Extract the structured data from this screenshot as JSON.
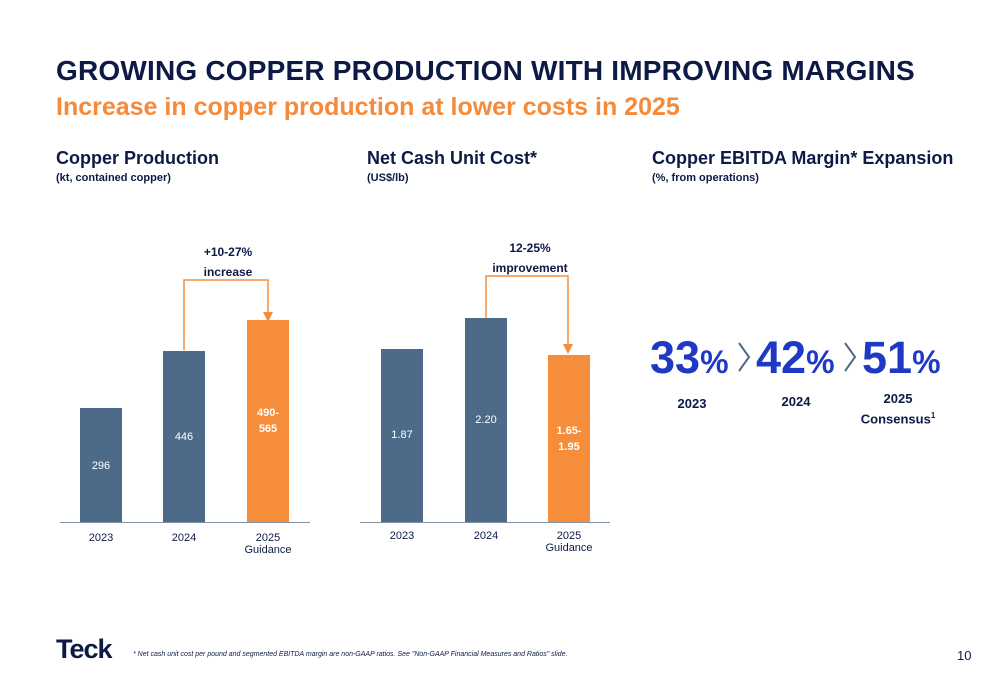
{
  "title": "GROWING COPPER PRODUCTION WITH IMPROVING MARGINS",
  "subtitle": "Increase in copper production at lower costs in 2025",
  "production": {
    "title": "Copper Production",
    "subtitle": "(kt, contained copper)",
    "callout_line1": "+10-27%",
    "callout_line2": "increase",
    "chart_data": {
      "type": "bar",
      "categories": [
        "2023",
        "2024",
        "2025 Guidance"
      ],
      "values": [
        296,
        446,
        [
          490,
          565
        ]
      ],
      "labels": [
        "296",
        "446",
        "490-\n565"
      ]
    },
    "bars": [
      {
        "label": "296",
        "x_label": "2023",
        "color": "#4e6a89"
      },
      {
        "label": "446",
        "x_label": "2024",
        "color": "#4e6a89"
      },
      {
        "label_line1": "490-",
        "label_line2": "565",
        "x_label_line1": "2025",
        "x_label_line2": "Guidance",
        "color": "#f68d3b"
      }
    ]
  },
  "cost": {
    "title": "Net Cash Unit Cost*",
    "subtitle": "(US$/lb)",
    "callout_line1": "12-25%",
    "callout_line2": "improvement",
    "chart_data": {
      "type": "bar",
      "categories": [
        "2023",
        "2024",
        "2025 Guidance"
      ],
      "values": [
        1.87,
        2.2,
        [
          1.65,
          1.95
        ]
      ],
      "labels": [
        "1.87",
        "2.20",
        "1.65-\n1.95"
      ]
    },
    "bars": [
      {
        "label": "1.87",
        "x_label": "2023",
        "color": "#4e6a89"
      },
      {
        "label": "2.20",
        "x_label": "2024",
        "color": "#4e6a89"
      },
      {
        "label_line1": "1.65-",
        "label_line2": "1.95",
        "x_label_line1": "2025",
        "x_label_line2": "Guidance",
        "color": "#f68d3b"
      }
    ]
  },
  "margin": {
    "title": "Copper EBITDA Margin* Expansion",
    "subtitle": "(%, from operations)",
    "items": [
      {
        "value": "33",
        "unit": "%",
        "year": "2023"
      },
      {
        "value": "42",
        "unit": "%",
        "year": "2024"
      },
      {
        "value": "51",
        "unit": "%",
        "year_line1": "2025",
        "year_line2": "Consensus",
        "footnote_ref": "1"
      }
    ],
    "accent_color": "#1f39c7"
  },
  "footer": {
    "logo": "Teck",
    "footnote": "* Net cash unit cost per pound and segmented EBITDA margin are non-GAAP ratios. See \"Non-GAAP Financial Measures and Ratios\" slide.",
    "page_number": "10"
  }
}
